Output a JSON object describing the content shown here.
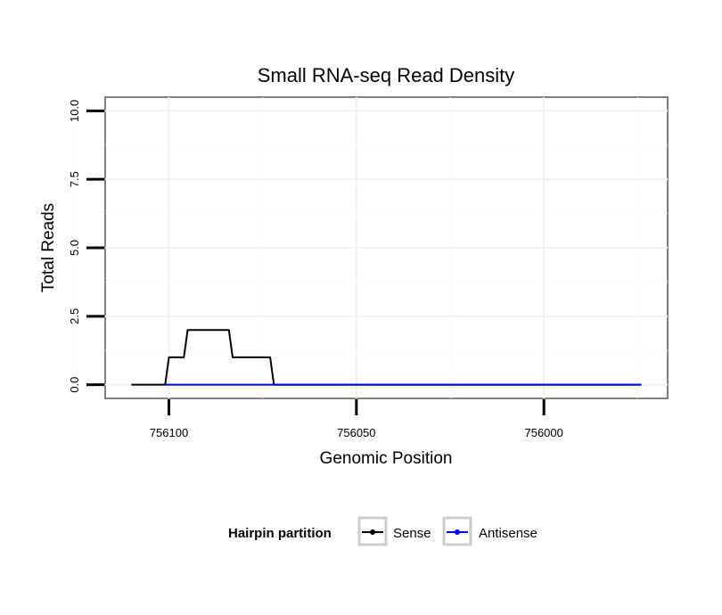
{
  "chart_data": {
    "type": "line",
    "title": "Small RNA-seq Read Density",
    "xlabel": "Genomic Position",
    "ylabel": "Total Reads",
    "xlim": [
      756117,
      755967
    ],
    "ylim": [
      -0.5,
      10.5
    ],
    "x_ticks": [
      756100,
      756050,
      756000
    ],
    "x_tick_labels": [
      "756100",
      "756050",
      "756000"
    ],
    "y_ticks": [
      0,
      2.5,
      5,
      7.5,
      10
    ],
    "y_tick_labels": [
      "0.0",
      "2.5",
      "5.0",
      "7.5",
      "10.0"
    ],
    "grid": true,
    "legend": {
      "title": "Hairpin partition",
      "position": "bottom"
    },
    "series": [
      {
        "name": "Sense",
        "color": "#000000",
        "x": [
          756110,
          756101,
          756100,
          756099,
          756098,
          756097,
          756096,
          756095,
          756094,
          756093,
          756092,
          756091,
          756090,
          756089,
          756088,
          756087,
          756086,
          756085,
          756084,
          756083,
          756082,
          756081,
          756080,
          756079,
          756078,
          756077,
          756076,
          756075,
          756074,
          756073,
          756072,
          756071,
          756070,
          756069,
          756068,
          756067,
          756066,
          756065,
          756064,
          756063,
          756062,
          756061,
          756060,
          756059,
          756058,
          756057,
          756056,
          756055,
          756054,
          756053,
          756052,
          756051,
          756050,
          756049,
          756048,
          756047,
          756046,
          756045,
          756044,
          756043,
          756042,
          756041,
          756040,
          756039,
          756038,
          756037,
          756036,
          756035,
          756034,
          756033,
          756032,
          756031,
          756030,
          756029,
          756028,
          756027,
          756026,
          756025,
          756024,
          756023,
          756022,
          756021,
          756020,
          756019,
          756018,
          756017,
          756016,
          756015,
          756014,
          756013,
          756012,
          756011,
          756010,
          756009,
          756008,
          756007,
          756006,
          756005,
          756004,
          756003,
          756002,
          756001,
          756000,
          755999,
          755998,
          755997,
          755996,
          755995,
          755994,
          755993,
          755992,
          755991,
          755990,
          755989,
          755988,
          755987,
          755986,
          755985,
          755984,
          755983,
          755982,
          755981,
          755980,
          755979,
          755978,
          755977,
          755976,
          755975,
          755974
        ],
        "values": [
          0,
          0,
          1,
          1,
          1,
          1,
          1,
          2,
          2,
          2,
          2,
          2,
          2,
          2,
          2,
          2,
          2,
          2,
          2,
          1,
          1,
          1,
          1,
          1,
          1,
          1,
          1,
          1,
          1,
          1,
          0,
          0,
          0,
          0,
          0,
          0,
          0,
          0,
          0,
          0,
          0,
          0,
          0,
          0,
          0,
          0,
          0,
          0,
          0,
          0,
          0,
          0,
          0,
          0,
          0,
          0,
          0,
          0,
          0,
          0,
          0,
          0,
          0,
          0,
          0,
          0,
          0,
          0,
          0,
          0,
          0,
          0,
          0,
          0,
          0,
          0,
          0,
          0,
          0,
          0,
          0,
          0,
          0,
          0,
          0,
          0,
          0,
          0,
          0,
          0,
          0,
          0,
          0,
          0,
          0,
          0,
          0,
          0,
          0,
          0,
          0,
          0,
          0,
          0,
          0,
          0,
          0,
          0,
          0,
          0,
          0,
          0,
          0,
          0,
          0,
          0,
          0,
          0,
          0,
          0,
          0,
          0,
          0,
          0,
          0,
          0,
          0,
          0,
          0
        ]
      },
      {
        "name": "Antisense",
        "color": "#0000ff",
        "x": [
          756101,
          755974
        ],
        "values": [
          0,
          0
        ]
      }
    ]
  }
}
